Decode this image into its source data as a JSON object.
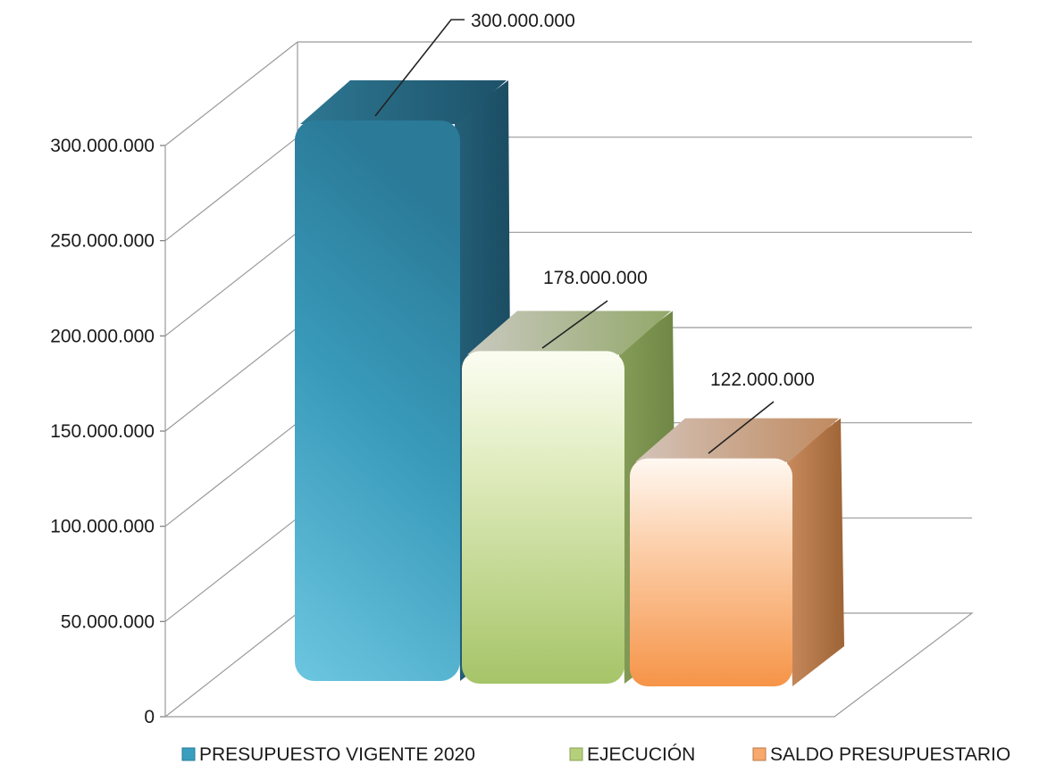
{
  "chart_data": {
    "type": "bar",
    "categories": [
      "PRESUPUESTO VIGENTE  2020",
      "EJECUCIÓN",
      "SALDO PRESUPUESTARIO"
    ],
    "values": [
      300000000,
      178000000,
      122000000
    ],
    "data_labels": [
      "300.000.000",
      "178.000.000",
      "122.000.000"
    ],
    "y_tick_labels": [
      "0",
      "50.000.000",
      "100.000.000",
      "150.000.000",
      "200.000.000",
      "250.000.000",
      "300.000.000"
    ],
    "ylim": [
      0,
      300000000
    ],
    "y_step": 50000000,
    "grid": true,
    "three_d": true,
    "legend": {
      "position": "bottom",
      "entries": [
        "PRESUPUESTO VIGENTE  2020",
        "EJECUCIÓN",
        "SALDO PRESUPUESTARIO"
      ]
    },
    "colors": [
      "#3a9fbf",
      "#b5cf7a",
      "#f8a86a"
    ]
  }
}
